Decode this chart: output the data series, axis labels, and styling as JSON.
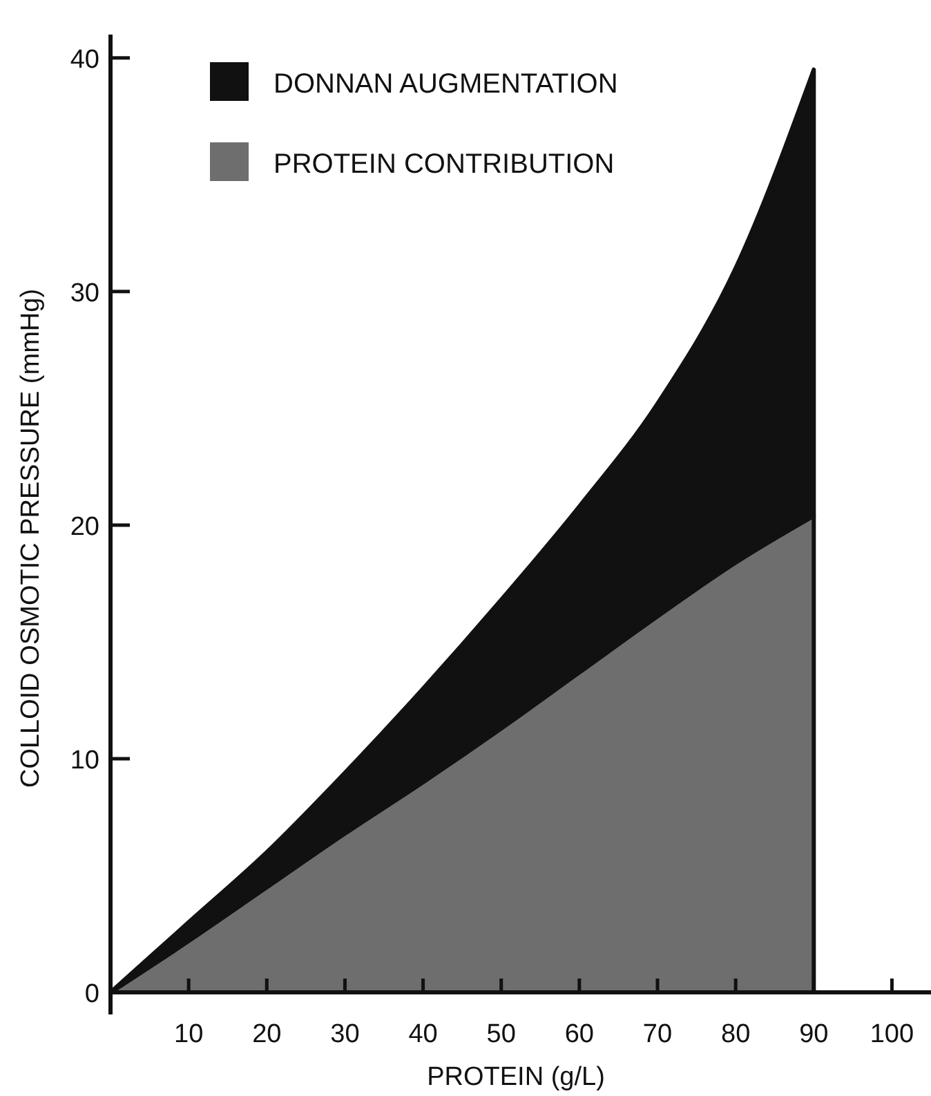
{
  "chart_data": {
    "type": "area",
    "stacked": true,
    "xlabel": "PROTEIN (g/L)",
    "ylabel": "COLLOID OSMOTIC PRESSURE (mmHg)",
    "x": [
      0,
      10,
      20,
      30,
      40,
      50,
      60,
      70,
      80,
      90
    ],
    "series": [
      {
        "name": "PROTEIN CONTRIBUTION",
        "color": "#6e6e6e",
        "values": [
          0,
          2.2,
          4.5,
          6.8,
          9.0,
          11.3,
          13.7,
          16.1,
          18.4,
          20.4
        ]
      },
      {
        "name": "DONNAN AUGMENTATION",
        "color": "#111111",
        "values": [
          0,
          0.8,
          1.5,
          2.6,
          4.0,
          5.5,
          7.1,
          9.1,
          12.6,
          19.1
        ]
      }
    ],
    "xlim": [
      0,
      105
    ],
    "xticks": [
      10,
      20,
      30,
      40,
      50,
      60,
      70,
      80,
      90,
      100
    ],
    "ylim": [
      0,
      41
    ],
    "yticks": [
      0,
      10,
      20,
      30,
      40
    ],
    "grid": false,
    "legend": "top left"
  }
}
